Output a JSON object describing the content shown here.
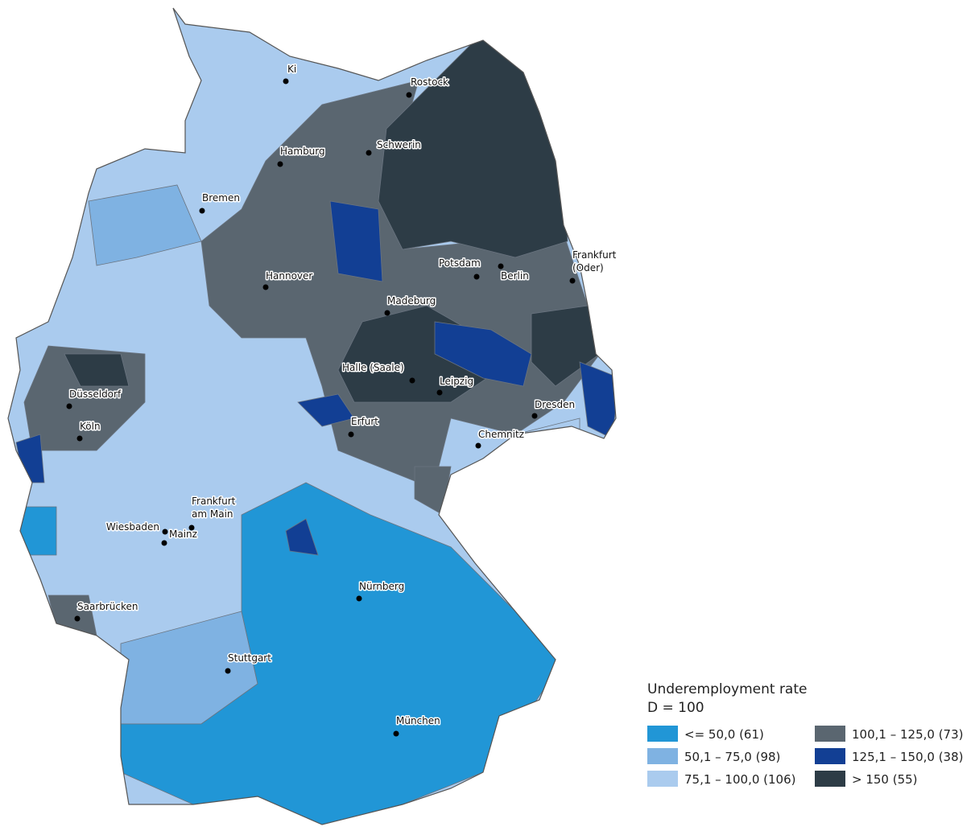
{
  "legend": {
    "title": "Underemployment rate",
    "subtitle": "D = 100",
    "items": [
      {
        "label": "<= 50,0 (61)",
        "color": "#2196d6"
      },
      {
        "label": "50,1 – 75,0 (98)",
        "color": "#7fb2e2"
      },
      {
        "label": "75,1 – 100,0 (106)",
        "color": "#aacbee"
      },
      {
        "label": "100,1 – 125,0 (73)",
        "color": "#5a6670"
      },
      {
        "label": "125,1 – 150,0 (38)",
        "color": "#123f94"
      },
      {
        "label": "> 150 (55)",
        "color": "#2d3c46"
      }
    ]
  },
  "cities": [
    {
      "lines": [
        "Ki"
      ]
    },
    {
      "lines": [
        "Rostock"
      ]
    },
    {
      "lines": [
        "Schwerin"
      ]
    },
    {
      "lines": [
        "Hamburg"
      ]
    },
    {
      "lines": [
        "Bremen"
      ]
    },
    {
      "lines": [
        "Potsdam"
      ]
    },
    {
      "lines": [
        "Berlin"
      ]
    },
    {
      "lines": [
        "Frankfurt",
        "(Oder)"
      ]
    },
    {
      "lines": [
        "Hannover"
      ]
    },
    {
      "lines": [
        "Madeburg"
      ]
    },
    {
      "lines": [
        "Halle (Saale)"
      ]
    },
    {
      "lines": [
        "Leipzig"
      ]
    },
    {
      "lines": [
        "Dresden"
      ]
    },
    {
      "lines": [
        "Düsseldorf"
      ]
    },
    {
      "lines": [
        "Köln"
      ]
    },
    {
      "lines": [
        "Erfurt"
      ]
    },
    {
      "lines": [
        "Chemnitz"
      ]
    },
    {
      "lines": [
        "Frankfurt",
        "am Main"
      ]
    },
    {
      "lines": [
        "Wiesbaden"
      ]
    },
    {
      "lines": [
        "Mainz"
      ]
    },
    {
      "lines": [
        "Nürnberg"
      ]
    },
    {
      "lines": [
        "Saarbrücken"
      ]
    },
    {
      "lines": [
        "Stuttgart"
      ]
    },
    {
      "lines": [
        "München"
      ]
    }
  ]
}
